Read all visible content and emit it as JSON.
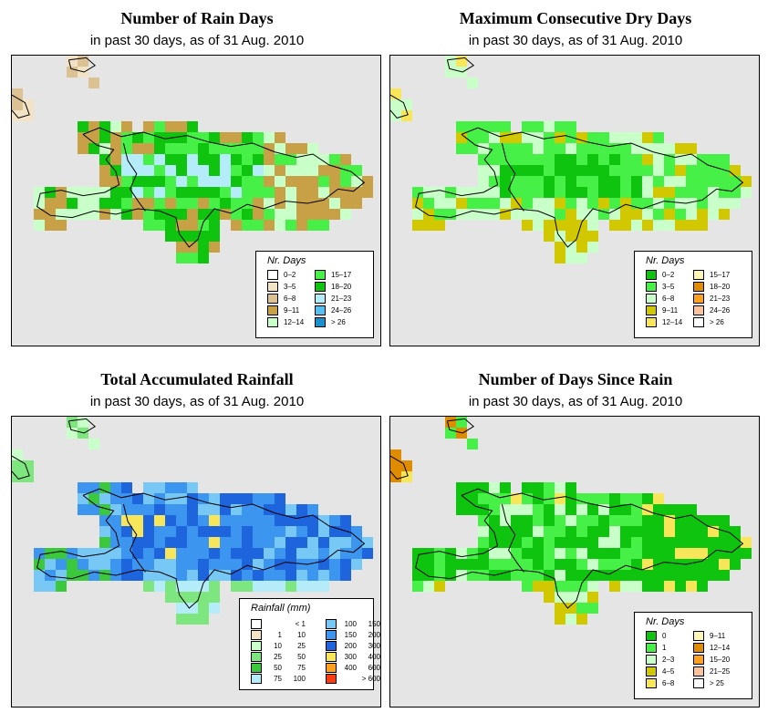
{
  "panels": [
    {
      "title": "Number of Rain Days",
      "subtitle": "in past 30 days, as of  31 Aug. 2010",
      "legend_title": "Nr. Days",
      "legend": [
        {
          "label": "0–2",
          "color": "#ffffff"
        },
        {
          "label": "3–5",
          "color": "#f3e3c6"
        },
        {
          "label": "6–8",
          "color": "#dcc193"
        },
        {
          "label": "9–11",
          "color": "#c8a146"
        },
        {
          "label": "12–14",
          "color": "#c9ffc9"
        },
        {
          "label": "15–17",
          "color": "#46f046"
        },
        {
          "label": "18–20",
          "color": "#0ec40e"
        },
        {
          "label": "21–23",
          "color": "#b4ecfa"
        },
        {
          "label": "24–26",
          "color": "#58c0f0"
        },
        {
          "label": "> 26",
          "color": "#1a90cc"
        }
      ]
    },
    {
      "title": "Maximum Consecutive Dry Days",
      "subtitle": "in past 30 days, as of  31 Aug. 2010",
      "legend_title": "Nr. Days",
      "legend": [
        {
          "label": "0–2",
          "color": "#0ec40e"
        },
        {
          "label": "3–5",
          "color": "#46f046"
        },
        {
          "label": "6–8",
          "color": "#c9ffc9"
        },
        {
          "label": "9–11",
          "color": "#d2c800"
        },
        {
          "label": "12–14",
          "color": "#f8e65a"
        },
        {
          "label": "15–17",
          "color": "#fff5b4"
        },
        {
          "label": "18–20",
          "color": "#e08c00"
        },
        {
          "label": "21–23",
          "color": "#ffa01e"
        },
        {
          "label": "24–26",
          "color": "#fbc39b"
        },
        {
          "label": "> 26",
          "color": "#ffffff"
        }
      ]
    },
    {
      "title": "Total Accumulated Rainfall",
      "subtitle": "in past 30 days, as of  31 Aug. 2010",
      "legend_title": "Rainfall (mm)",
      "legend": [
        {
          "from": "",
          "to": "< 1",
          "color": "#ffffff"
        },
        {
          "from": "1",
          "to": "10",
          "color": "#f3e3c6"
        },
        {
          "from": "10",
          "to": "25",
          "color": "#c9ffc9"
        },
        {
          "from": "25",
          "to": "50",
          "color": "#7ee67e"
        },
        {
          "from": "50",
          "to": "75",
          "color": "#3cc83c"
        },
        {
          "from": "75",
          "to": "100",
          "color": "#b4ecfa"
        },
        {
          "from": "100",
          "to": "150",
          "color": "#78c8f5"
        },
        {
          "from": "150",
          "to": "200",
          "color": "#3c96f0"
        },
        {
          "from": "200",
          "to": "300",
          "color": "#1e64dc"
        },
        {
          "from": "300",
          "to": "400",
          "color": "#f8e65a"
        },
        {
          "from": "400",
          "to": "600",
          "color": "#ffa01e"
        },
        {
          "from": "",
          "to": "> 600",
          "color": "#fa3c14"
        }
      ]
    },
    {
      "title": "Number of Days Since Rain",
      "subtitle": "in past 30 days, as of  31 Aug. 2010",
      "legend_title": "Nr. Days",
      "legend": [
        {
          "label": "0",
          "color": "#0ec40e"
        },
        {
          "label": "1",
          "color": "#46f046"
        },
        {
          "label": "2–3",
          "color": "#c9ffc9"
        },
        {
          "label": "4–5",
          "color": "#d2c800"
        },
        {
          "label": "6–8",
          "color": "#f8e65a"
        },
        {
          "label": "9–11",
          "color": "#fff5b4"
        },
        {
          "label": "12–14",
          "color": "#e08c00"
        },
        {
          "label": "15–20",
          "color": "#ffa01e"
        },
        {
          "label": "21–25",
          "color": "#fbc39b"
        },
        {
          "label": "> 25",
          "color": "#ffffff"
        }
      ]
    }
  ],
  "colors": {
    "map_background": "#e5e5e5",
    "outline": "#000000"
  }
}
